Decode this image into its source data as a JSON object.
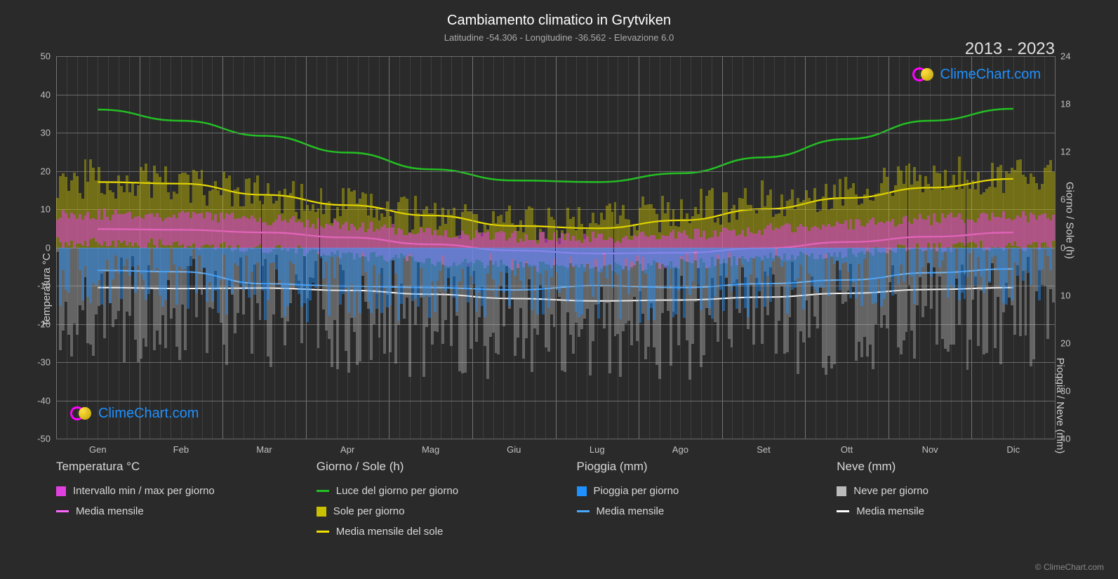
{
  "title": "Cambiamento climatico in Grytviken",
  "subtitle": "Latitudine -54.306 - Longitudine -36.562 - Elevazione 6.0",
  "year_range": "2013 - 2023",
  "logo_text": "ClimeChart.com",
  "copyright": "© ClimeChart.com",
  "axes": {
    "left_label": "Temperatura °C",
    "right_top_label": "Giorno / Sole (h)",
    "right_bottom_label": "Pioggia / Neve (mm)",
    "y_left_min": -50,
    "y_left_max": 50,
    "y_left_ticks": [
      50,
      40,
      30,
      20,
      10,
      0,
      -10,
      -20,
      -30,
      -40,
      -50
    ],
    "y_right_top_ticks": [
      24,
      18,
      12,
      6,
      0
    ],
    "y_right_bottom_ticks": [
      10,
      20,
      30,
      40
    ],
    "x_labels": [
      "Gen",
      "Feb",
      "Mar",
      "Apr",
      "Mag",
      "Giu",
      "Lug",
      "Ago",
      "Set",
      "Ott",
      "Nov",
      "Dic"
    ]
  },
  "colors": {
    "background": "#2a2a2a",
    "grid_major": "#6a6a6a",
    "grid_minor": "rgba(160,160,160,0.18)",
    "text": "#d0d0d0",
    "title_text": "#ffffff",
    "subtitle_text": "#aaaaaa",
    "temp_range_bar": "#e040e0",
    "temp_range_bar_opacity": 0.55,
    "temp_avg_line": "#ff66ff",
    "daylight_line": "#22c022",
    "sun_bar": "#c8c000",
    "sun_bar_opacity": 0.45,
    "sun_avg_line": "#f0e000",
    "rain_bar": "#1e90ff",
    "rain_bar_opacity": 0.45,
    "rain_avg_line": "#4aa8ff",
    "snow_bar": "#bbbbbb",
    "snow_bar_opacity": 0.4,
    "snow_avg_line": "#ffffff"
  },
  "series": {
    "months_center_x_pct": [
      4.17,
      12.5,
      20.83,
      29.17,
      37.5,
      45.83,
      54.17,
      62.5,
      70.83,
      79.17,
      87.5,
      95.83
    ],
    "daylight_hours": [
      17.3,
      15.9,
      14.0,
      11.9,
      9.8,
      8.4,
      8.2,
      9.3,
      11.3,
      13.6,
      15.9,
      17.4
    ],
    "sun_avg_hours": [
      8.2,
      8.0,
      6.6,
      5.3,
      4.0,
      2.7,
      2.4,
      3.4,
      4.8,
      6.2,
      7.5,
      8.6
    ],
    "temp_avg_c": [
      4.8,
      4.6,
      3.9,
      2.6,
      0.8,
      -0.8,
      -1.6,
      -1.4,
      -0.2,
      1.4,
      2.8,
      3.9
    ],
    "rain_avg_mm": [
      4.8,
      5.1,
      7.6,
      8.1,
      8.4,
      8.9,
      8.0,
      8.4,
      7.6,
      6.8,
      5.3,
      4.5
    ],
    "snow_avg_mm": [
      8.4,
      8.6,
      8.5,
      9.0,
      9.8,
      10.7,
      11.2,
      11.0,
      10.4,
      9.6,
      8.8,
      8.4
    ],
    "daily_days_per_month": 30,
    "temp_min_c_daily_amp": 3.5,
    "temp_max_c_daily_amp": 4.0,
    "sun_daily_noise_amp": 5.0,
    "rain_daily_noise_amp": 15.0,
    "snow_daily_noise_amp": 25.0
  },
  "legend": {
    "cols": [
      {
        "header": "Temperatura °C",
        "items": [
          {
            "type": "bar",
            "color": "#e040e0",
            "label": "Intervallo min / max per giorno"
          },
          {
            "type": "line",
            "color": "#ff66ff",
            "label": "Media mensile"
          }
        ]
      },
      {
        "header": "Giorno / Sole (h)",
        "items": [
          {
            "type": "line",
            "color": "#22c022",
            "label": "Luce del giorno per giorno"
          },
          {
            "type": "bar",
            "color": "#c8c000",
            "label": "Sole per giorno"
          },
          {
            "type": "line",
            "color": "#f0e000",
            "label": "Media mensile del sole"
          }
        ]
      },
      {
        "header": "Pioggia (mm)",
        "items": [
          {
            "type": "bar",
            "color": "#1e90ff",
            "label": "Pioggia per giorno"
          },
          {
            "type": "line",
            "color": "#4aa8ff",
            "label": "Media mensile"
          }
        ]
      },
      {
        "header": "Neve (mm)",
        "items": [
          {
            "type": "bar",
            "color": "#bbbbbb",
            "label": "Neve per giorno"
          },
          {
            "type": "line",
            "color": "#ffffff",
            "label": "Media mensile"
          }
        ]
      }
    ]
  }
}
